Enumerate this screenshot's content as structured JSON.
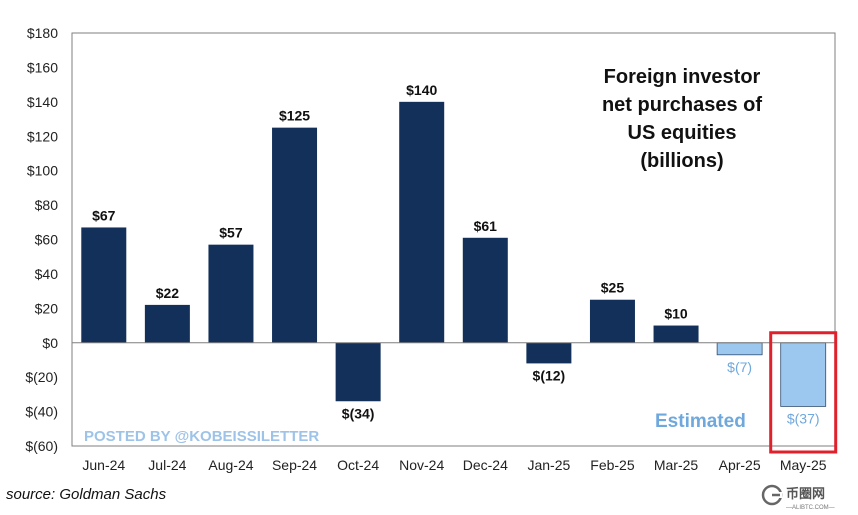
{
  "chart_data": {
    "type": "bar",
    "title_lines": [
      "Foreign investor",
      "net purchases of",
      "US equities",
      "(billions)"
    ],
    "categories": [
      "Jun-24",
      "Jul-24",
      "Aug-24",
      "Sep-24",
      "Oct-24",
      "Nov-24",
      "Dec-24",
      "Jan-25",
      "Feb-25",
      "Mar-25",
      "Apr-25",
      "May-25"
    ],
    "values": [
      67,
      22,
      57,
      125,
      -34,
      140,
      61,
      -12,
      25,
      10,
      -7,
      -37
    ],
    "data_labels": [
      "$67",
      "$22",
      "$57",
      "$125",
      "$(34)",
      "$140",
      "$61",
      "$(12)",
      "$25",
      "$10",
      "$(7)",
      "$(37)"
    ],
    "estimated": [
      false,
      false,
      false,
      false,
      false,
      false,
      false,
      false,
      false,
      false,
      true,
      true
    ],
    "highlighted_index": 11,
    "y_ticks": [
      180,
      160,
      140,
      120,
      100,
      80,
      60,
      40,
      20,
      0,
      -20,
      -40,
      -60
    ],
    "y_tick_labels": [
      "$180",
      "$160",
      "$140",
      "$120",
      "$100",
      "$80",
      "$60",
      "$40",
      "$20",
      "$0",
      "$(20)",
      "$(40)",
      "$(60)"
    ],
    "ylim": [
      -60,
      180
    ],
    "grid": false,
    "estimated_note": "Estimated",
    "colors": {
      "actual": "#12305a",
      "estimated": "#9cc7ee",
      "estimated_border": "#2f4f73",
      "highlight": "#e0202a",
      "axis": "#7f7f7f"
    }
  },
  "watermark": "POSTED BY @KOBEISSILETTER",
  "source": "source: Goldman Sachs",
  "logo": {
    "name": "币圈网",
    "sub": "—ALIBTC.COM—",
    "icon": "stylized-g-logo-icon"
  }
}
